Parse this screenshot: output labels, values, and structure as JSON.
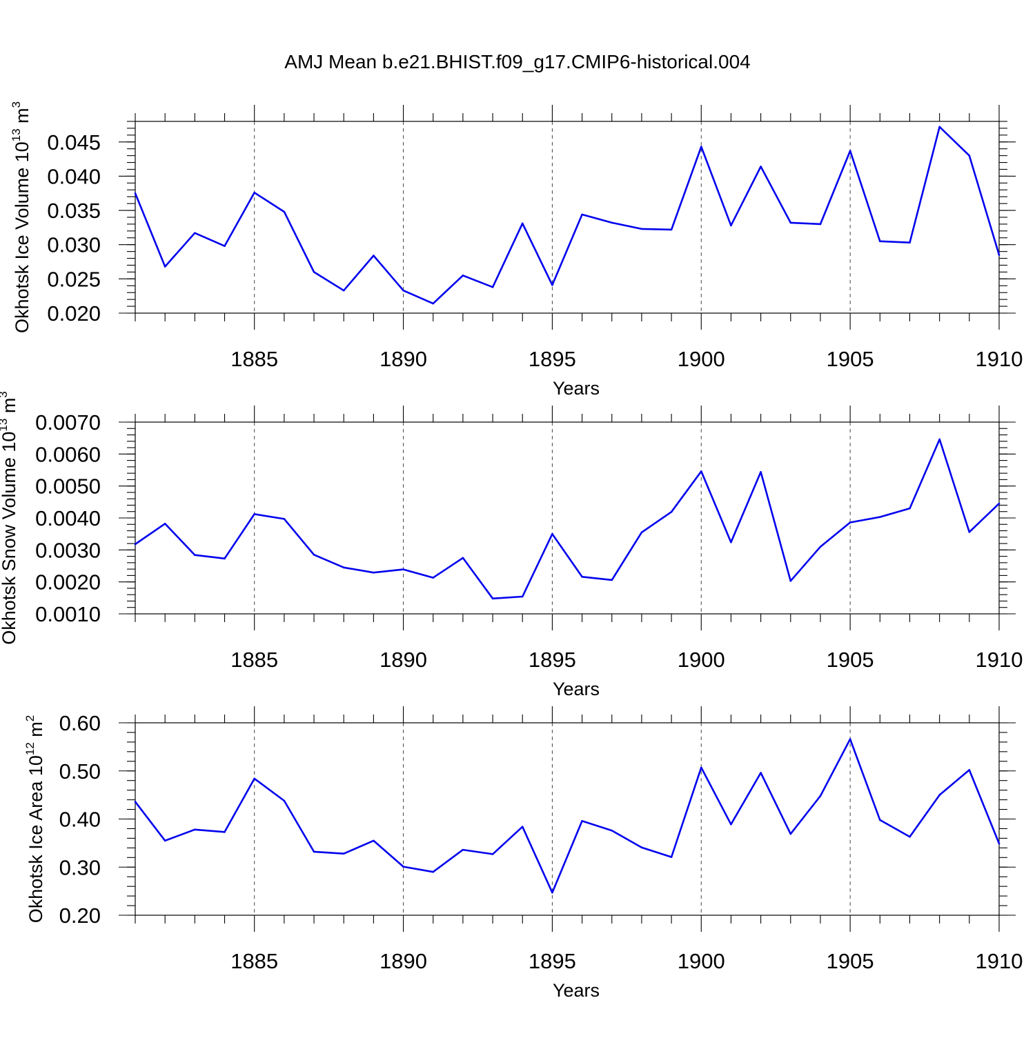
{
  "title": "AMJ Mean b.e21.BHIST.f09_g17.CMIP6-historical.004",
  "line_color": "#0000ee",
  "chart_data": [
    {
      "type": "line",
      "ylabel": "Okhotsk Ice Volume 10",
      "ylabel_exp": "13",
      "ylabel_unit": " m",
      "ylabel_unit_exp": "3",
      "xlabel": "Years",
      "xlim": [
        1881,
        1910
      ],
      "ylim": [
        0.02,
        0.048
      ],
      "x_ticks": [
        1885,
        1890,
        1895,
        1900,
        1905,
        1910
      ],
      "y_ticks": [
        0.02,
        0.025,
        0.03,
        0.035,
        0.04,
        0.045
      ],
      "y_tick_labels": [
        "0.020",
        "0.025",
        "0.030",
        "0.035",
        "0.040",
        "0.045"
      ],
      "y_minor_step": 0.001,
      "grid": "dashed vertical at major x ticks",
      "x": [
        1881,
        1882,
        1883,
        1884,
        1885,
        1886,
        1887,
        1888,
        1889,
        1890,
        1891,
        1892,
        1893,
        1894,
        1895,
        1896,
        1897,
        1898,
        1899,
        1900,
        1901,
        1902,
        1903,
        1904,
        1905,
        1906,
        1907,
        1908,
        1909,
        1910
      ],
      "values": [
        0.0375,
        0.0268,
        0.0317,
        0.0298,
        0.0376,
        0.0348,
        0.026,
        0.0233,
        0.0284,
        0.0233,
        0.0214,
        0.0255,
        0.0238,
        0.0331,
        0.0241,
        0.0344,
        0.0332,
        0.0323,
        0.0322,
        0.0443,
        0.0328,
        0.0414,
        0.0332,
        0.033,
        0.0437,
        0.0305,
        0.0303,
        0.0472,
        0.043,
        0.0285
      ]
    },
    {
      "type": "line",
      "ylabel": "Okhotsk Snow Volume 10",
      "ylabel_exp": "13",
      "ylabel_unit": " m",
      "ylabel_unit_exp": "3",
      "xlabel": "Years",
      "xlim": [
        1881,
        1910
      ],
      "ylim": [
        0.001,
        0.007
      ],
      "x_ticks": [
        1885,
        1890,
        1895,
        1900,
        1905,
        1910
      ],
      "y_ticks": [
        0.001,
        0.002,
        0.003,
        0.004,
        0.005,
        0.006,
        0.007
      ],
      "y_tick_labels": [
        "0.0010",
        "0.0020",
        "0.0030",
        "0.0040",
        "0.0050",
        "0.0060",
        "0.0070"
      ],
      "y_minor_step": 0.0002,
      "grid": "dashed vertical at major x ticks",
      "x": [
        1881,
        1882,
        1883,
        1884,
        1885,
        1886,
        1887,
        1888,
        1889,
        1890,
        1891,
        1892,
        1893,
        1894,
        1895,
        1896,
        1897,
        1898,
        1899,
        1900,
        1901,
        1902,
        1903,
        1904,
        1905,
        1906,
        1907,
        1908,
        1909,
        1910
      ],
      "values": [
        0.00318,
        0.00382,
        0.00284,
        0.00273,
        0.00412,
        0.00397,
        0.00285,
        0.00245,
        0.00229,
        0.00239,
        0.00213,
        0.00275,
        0.00148,
        0.00154,
        0.0035,
        0.00216,
        0.00206,
        0.00355,
        0.00419,
        0.00546,
        0.00324,
        0.00544,
        0.00203,
        0.0031,
        0.00386,
        0.00403,
        0.0043,
        0.00646,
        0.00356,
        0.00445
      ]
    },
    {
      "type": "line",
      "ylabel": "Okhotsk Ice Area 10",
      "ylabel_exp": "12",
      "ylabel_unit": " m",
      "ylabel_unit_exp": "2",
      "xlabel": "Years",
      "xlim": [
        1881,
        1910
      ],
      "ylim": [
        0.2,
        0.6
      ],
      "x_ticks": [
        1885,
        1890,
        1895,
        1900,
        1905,
        1910
      ],
      "y_ticks": [
        0.2,
        0.3,
        0.4,
        0.5,
        0.6
      ],
      "y_tick_labels": [
        "0.20",
        "0.30",
        "0.40",
        "0.50",
        "0.60"
      ],
      "y_minor_step": 0.02,
      "grid": "dashed vertical at major x ticks",
      "x": [
        1881,
        1882,
        1883,
        1884,
        1885,
        1886,
        1887,
        1888,
        1889,
        1890,
        1891,
        1892,
        1893,
        1894,
        1895,
        1896,
        1897,
        1898,
        1899,
        1900,
        1901,
        1902,
        1903,
        1904,
        1905,
        1906,
        1907,
        1908,
        1909,
        1910
      ],
      "values": [
        0.436,
        0.355,
        0.378,
        0.373,
        0.484,
        0.438,
        0.332,
        0.328,
        0.355,
        0.301,
        0.29,
        0.336,
        0.327,
        0.384,
        0.247,
        0.396,
        0.376,
        0.341,
        0.321,
        0.507,
        0.389,
        0.496,
        0.369,
        0.448,
        0.566,
        0.398,
        0.363,
        0.45,
        0.502,
        0.349
      ]
    }
  ]
}
